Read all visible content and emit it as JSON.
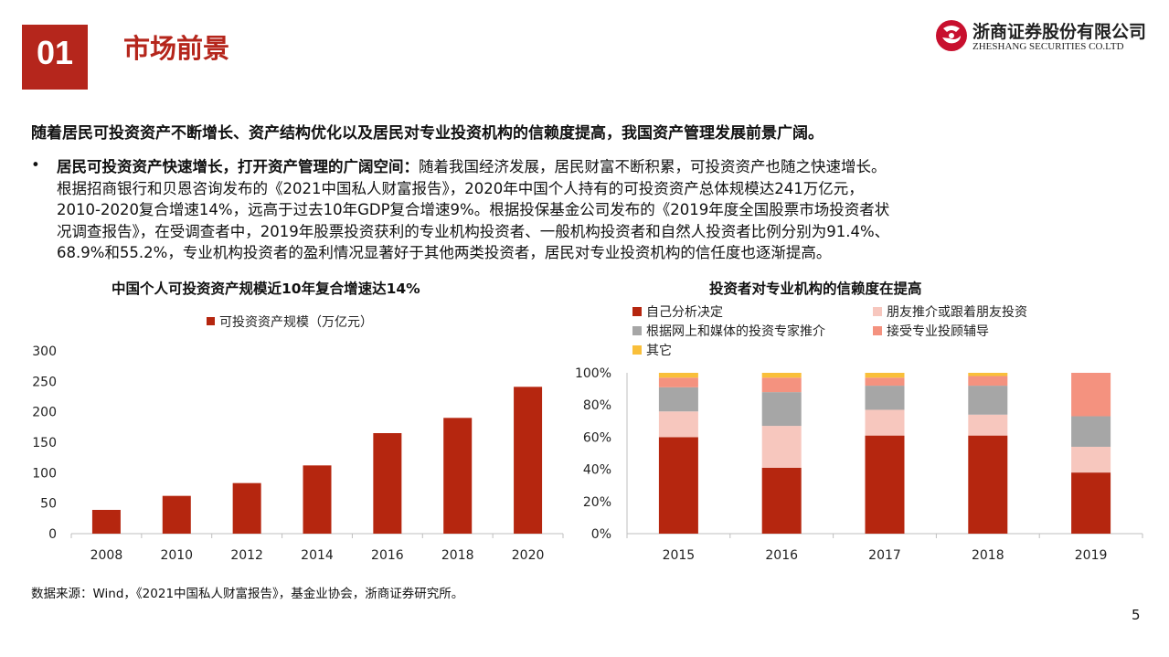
{
  "header": {
    "section_number": "01",
    "section_title": "市场前景",
    "logo_cn": "浙商证券股份有限公司",
    "logo_en": "ZHESHANG SECURITIES CO.LTD",
    "brand_color": "#b5261c"
  },
  "headline": "随着居民可投资资产不断增长、资产结构优化以及居民对专业投资机构的信赖度提高，我国资产管理发展前景广阔。",
  "bullet": {
    "marker": "•",
    "lead": "居民可投资资产快速增长，打开资产管理的广阔空间：",
    "lines": [
      "随着我国经济发展，居民财富不断积累，可投资资产也随之快速增长。",
      "根据招商银行和贝恩咨询发布的《2021中国私人财富报告》，2020年中国个人持有的可投资资产总体规模达241万亿元，",
      "2010-2020复合增速14%，远高于过去10年GDP复合增速9%。根据投保基金公司发布的《2019年度全国股票市场投资者状",
      "况调查报告》，在受调查者中，2019年股票投资获利的专业机构投资者、一般机构投资者和自然人投资者比例分别为91.4%、",
      "68.9%和55.2%，专业机构投资者的盈利情况显著好于其他两类投资者，居民对专业投资机构的信任度也逐渐提高。"
    ]
  },
  "chart_data": [
    {
      "type": "bar",
      "title": "中国个人可投资资产规模近10年复合增速达14%",
      "categories": [
        "2008",
        "2010",
        "2012",
        "2014",
        "2016",
        "2018",
        "2020"
      ],
      "series": [
        {
          "name": "可投资资产规模（万亿元）",
          "values": [
            39,
            62,
            83,
            112,
            165,
            190,
            241
          ],
          "color": "#b5260f"
        }
      ],
      "ylim": [
        0,
        300
      ],
      "yticks": [
        "0",
        "50",
        "100",
        "150",
        "200",
        "250",
        "300"
      ],
      "legend": "top",
      "grid": false
    },
    {
      "type": "bar",
      "stacked": true,
      "title": "投资者对专业机构的信赖度在提高",
      "categories": [
        "2015",
        "2016",
        "2017",
        "2018",
        "2019"
      ],
      "series": [
        {
          "name": "自己分析决定",
          "values": [
            60,
            41,
            61,
            61,
            38
          ],
          "color": "#b5260f"
        },
        {
          "name": "朋友推介或跟着朋友投资",
          "values": [
            16,
            26,
            16,
            13,
            16
          ],
          "color": "#f7c7be"
        },
        {
          "name": "根据网上和媒体的投资专家推介",
          "values": [
            15,
            21,
            15,
            18,
            19
          ],
          "color": "#a6a6a6"
        },
        {
          "name": "接受专业投顾辅导",
          "values": [
            6,
            9,
            5,
            6,
            27
          ],
          "color": "#f4927f"
        },
        {
          "name": "其它",
          "values": [
            3,
            3,
            3,
            2,
            0
          ],
          "color": "#f9bf3a"
        }
      ],
      "ylim": [
        0,
        100
      ],
      "yticks": [
        "0%",
        "20%",
        "40%",
        "60%",
        "80%",
        "100%"
      ],
      "legend": "top-left",
      "grid": false
    }
  ],
  "source": "数据来源：Wind，《2021中国私人财富报告》，基金业协会，浙商证券研究所。",
  "page_number": "5"
}
